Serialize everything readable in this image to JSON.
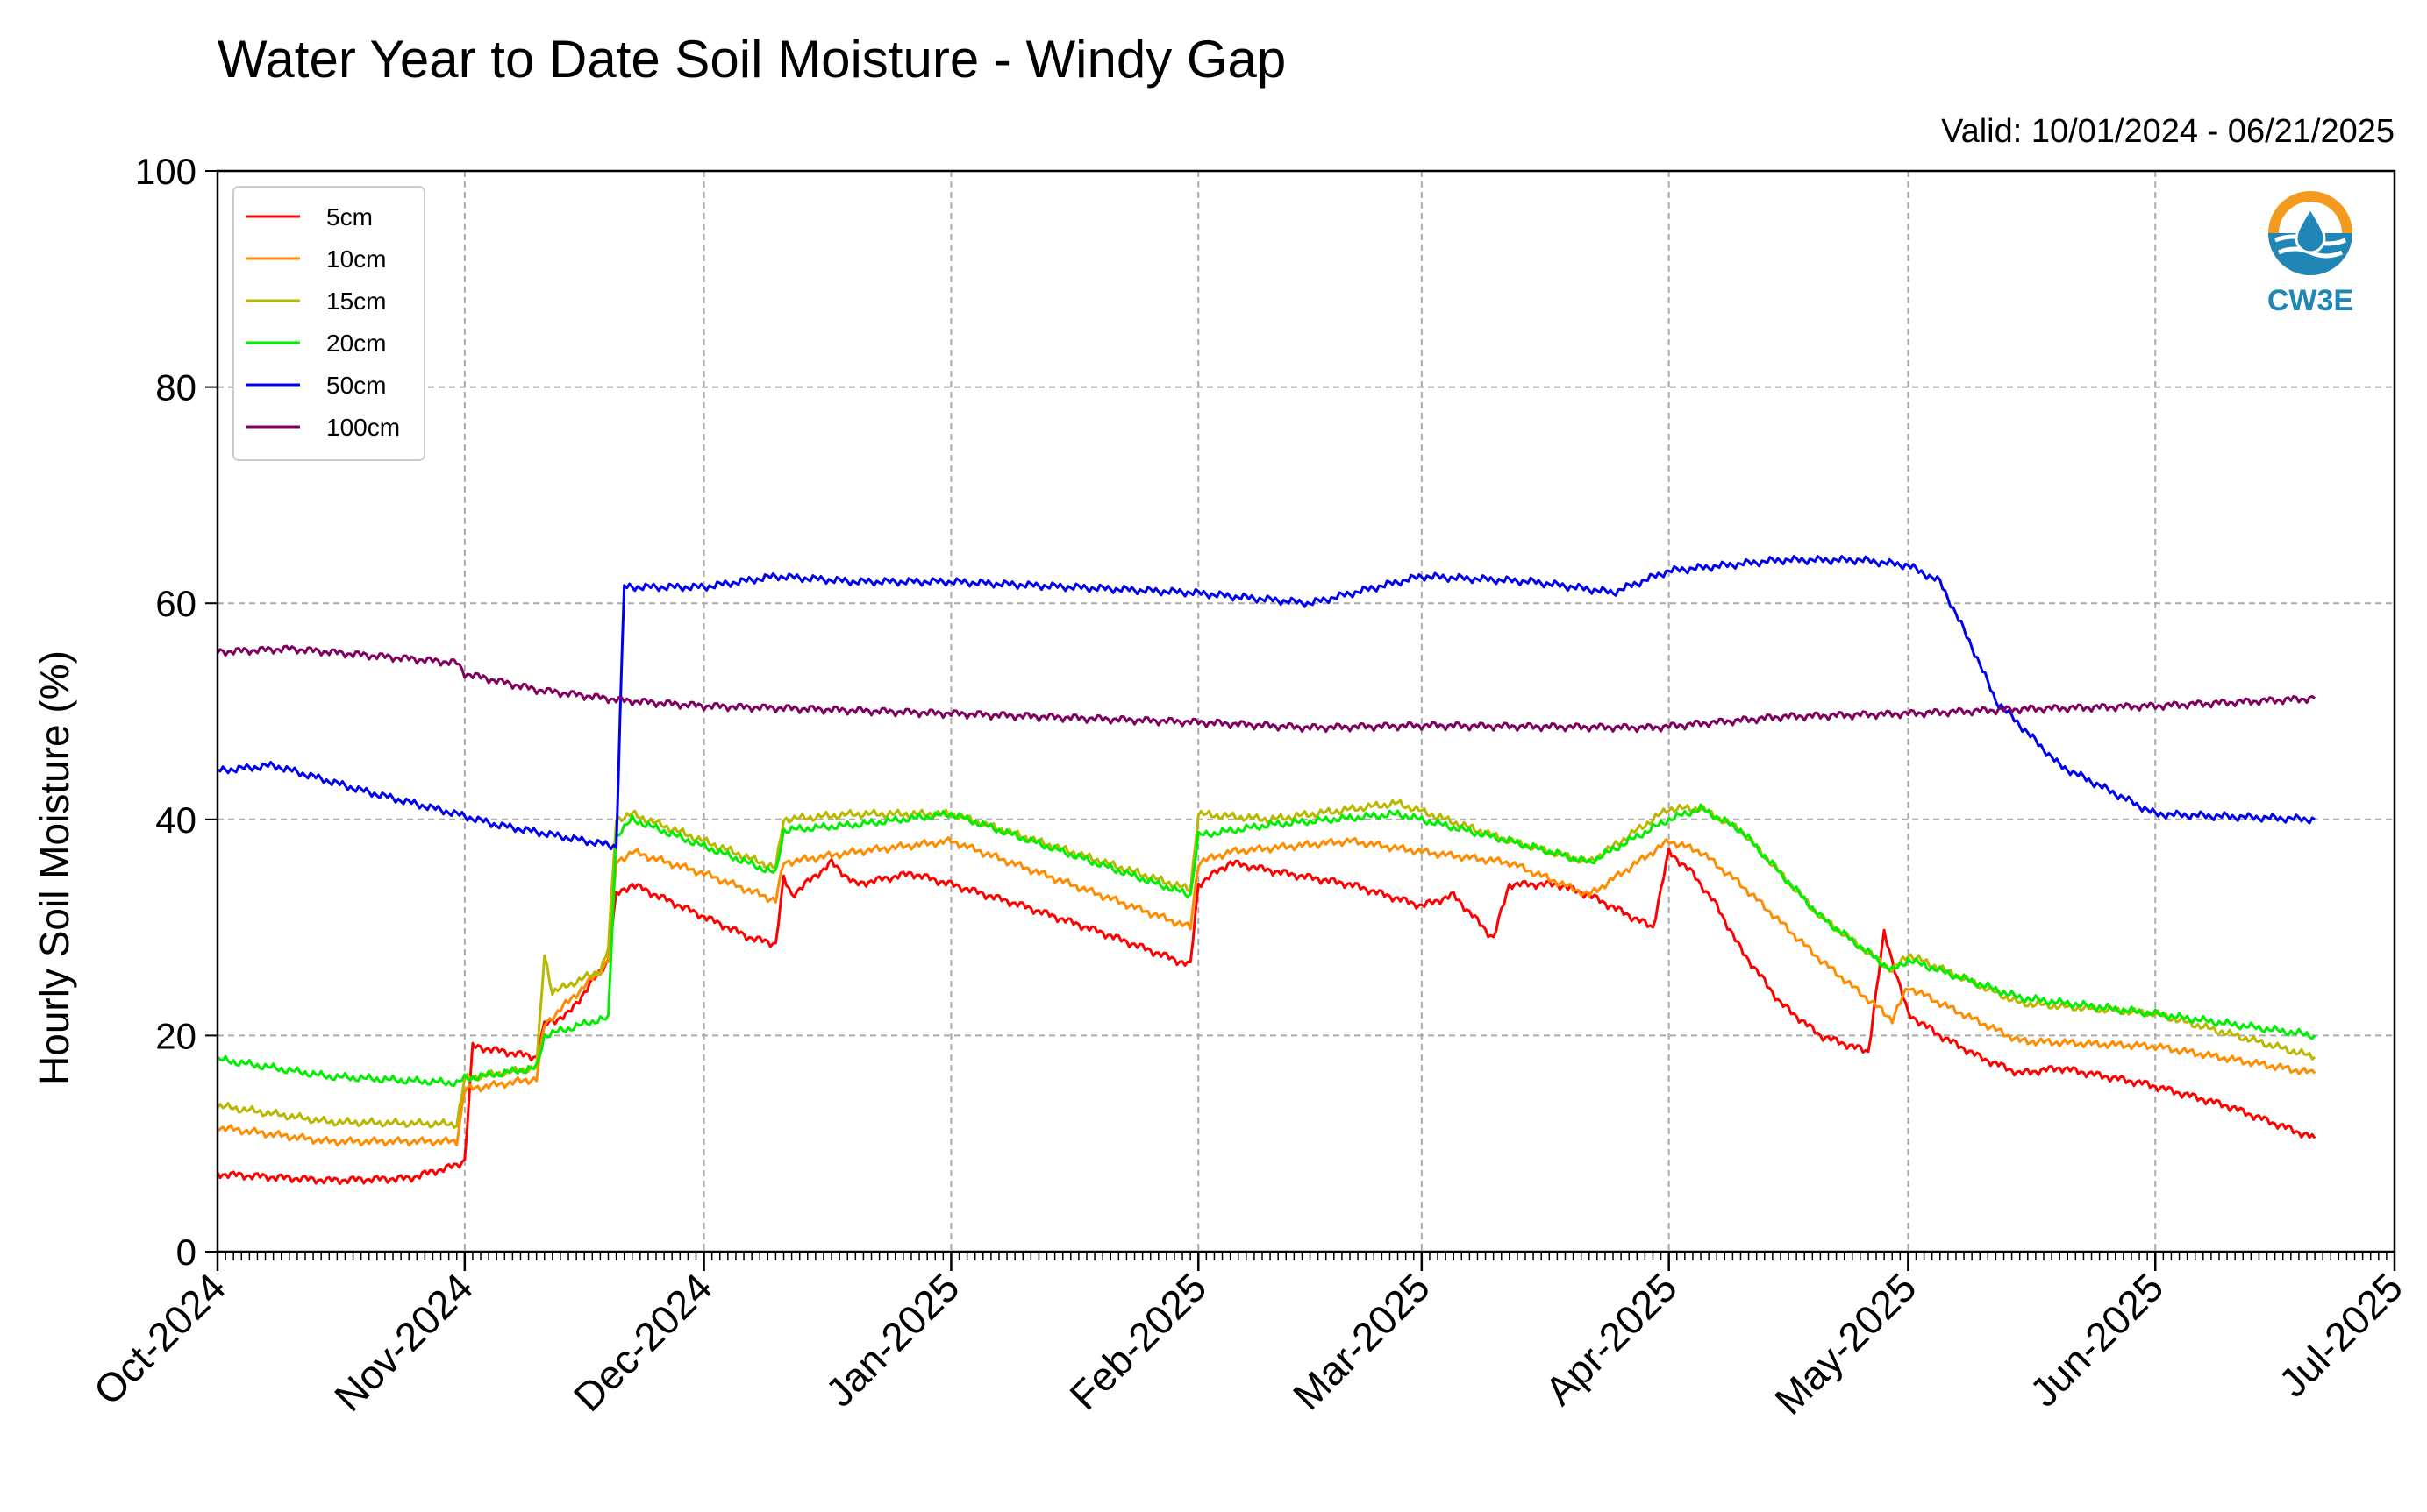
{
  "chart_data": {
    "type": "line",
    "title": "Water Year to Date Soil Moisture - Windy Gap",
    "subtitle": "Valid: 10/01/2024 - 06/21/2025",
    "ylabel": "Hourly Soil Moisture (%)",
    "xlabel": "",
    "ylim": [
      0,
      100
    ],
    "xlim": [
      "2024-10-01",
      "2025-07-01"
    ],
    "yticks": [
      "0",
      "20",
      "40",
      "60",
      "80",
      "100"
    ],
    "xticks": [
      {
        "date": "2024-10-01",
        "label": "Oct-2024"
      },
      {
        "date": "2024-11-01",
        "label": "Nov-2024"
      },
      {
        "date": "2024-12-01",
        "label": "Dec-2024"
      },
      {
        "date": "2025-01-01",
        "label": "Jan-2025"
      },
      {
        "date": "2025-02-01",
        "label": "Feb-2025"
      },
      {
        "date": "2025-03-01",
        "label": "Mar-2025"
      },
      {
        "date": "2025-04-01",
        "label": "Apr-2025"
      },
      {
        "date": "2025-05-01",
        "label": "May-2025"
      },
      {
        "date": "2025-06-01",
        "label": "Jun-2025"
      },
      {
        "date": "2025-07-01",
        "label": "Jul-2025"
      }
    ],
    "grid": true,
    "legend_position": "top-left",
    "series": [
      {
        "name": "5cm",
        "color": "#ff0000",
        "x": [
          "2024-10-01",
          "2024-10-15",
          "2024-10-25",
          "2024-10-31",
          "2024-11-01",
          "2024-11-02",
          "2024-11-10",
          "2024-11-11",
          "2024-11-14",
          "2024-11-18",
          "2024-11-19",
          "2024-11-20",
          "2024-11-22",
          "2024-12-01",
          "2024-12-07",
          "2024-12-10",
          "2024-12-11",
          "2024-12-12",
          "2024-12-17",
          "2024-12-20",
          "2024-12-27",
          "2025-01-01",
          "2025-01-10",
          "2025-01-20",
          "2025-01-31",
          "2025-02-01",
          "2025-02-05",
          "2025-02-12",
          "2025-02-20",
          "2025-03-01",
          "2025-03-05",
          "2025-03-10",
          "2025-03-12",
          "2025-03-18",
          "2025-03-22",
          "2025-03-30",
          "2025-04-01",
          "2025-04-04",
          "2025-04-07",
          "2025-04-10",
          "2025-04-15",
          "2025-04-20",
          "2025-04-26",
          "2025-04-28",
          "2025-05-01",
          "2025-05-05",
          "2025-05-10",
          "2025-05-15",
          "2025-05-20",
          "2025-05-31",
          "2025-06-10",
          "2025-06-21"
        ],
        "values": [
          7.2,
          6.6,
          6.8,
          8.0,
          8.5,
          19.0,
          18.0,
          21.0,
          22.0,
          26.0,
          27.0,
          33.0,
          34.0,
          31.0,
          29.0,
          28.5,
          34.5,
          33.0,
          36.0,
          34.0,
          35.0,
          34.0,
          32.0,
          29.5,
          26.5,
          34.0,
          36.0,
          35.0,
          34.0,
          32.0,
          33.0,
          29.0,
          34.0,
          34.0,
          33.0,
          30.0,
          37.0,
          35.0,
          32.0,
          28.0,
          23.0,
          20.0,
          18.5,
          29.5,
          22.0,
          20.0,
          18.0,
          16.5,
          17.0,
          15.5,
          13.5,
          10.5
        ]
      },
      {
        "name": "10cm",
        "color": "#ff8c00",
        "x": [
          "2024-10-01",
          "2024-10-15",
          "2024-10-31",
          "2024-11-01",
          "2024-11-10",
          "2024-11-11",
          "2024-11-18",
          "2024-11-19",
          "2024-11-20",
          "2024-11-22",
          "2024-12-01",
          "2024-12-10",
          "2024-12-11",
          "2024-12-20",
          "2025-01-01",
          "2025-01-31",
          "2025-02-01",
          "2025-02-05",
          "2025-02-20",
          "2025-03-01",
          "2025-03-12",
          "2025-03-22",
          "2025-04-01",
          "2025-04-05",
          "2025-04-10",
          "2025-04-20",
          "2025-04-29",
          "2025-05-01",
          "2025-05-05",
          "2025-05-15",
          "2025-06-01",
          "2025-06-21"
        ],
        "values": [
          11.5,
          10.2,
          10.2,
          15.0,
          16.0,
          21.0,
          26.0,
          27.0,
          36.0,
          37.0,
          35.0,
          32.5,
          36.0,
          37.0,
          38.0,
          30.0,
          36.0,
          37.0,
          38.0,
          37.0,
          36.0,
          33.0,
          38.0,
          37.0,
          34.0,
          27.0,
          21.5,
          24.5,
          23.0,
          19.5,
          19.0,
          16.5
        ]
      },
      {
        "name": "15cm",
        "color": "#b8b800",
        "x": [
          "2024-10-01",
          "2024-10-15",
          "2024-10-31",
          "2024-11-01",
          "2024-11-10",
          "2024-11-11",
          "2024-11-12",
          "2024-11-18",
          "2024-11-19",
          "2024-11-20",
          "2024-11-22",
          "2024-12-01",
          "2024-12-10",
          "2024-12-11",
          "2024-12-20",
          "2025-01-01",
          "2025-01-31",
          "2025-02-01",
          "2025-02-10",
          "2025-02-26",
          "2025-03-12",
          "2025-03-22",
          "2025-04-01",
          "2025-04-05",
          "2025-04-10",
          "2025-04-20",
          "2025-04-29",
          "2025-05-01",
          "2025-05-15",
          "2025-06-01",
          "2025-06-21"
        ],
        "values": [
          13.5,
          12.0,
          11.8,
          16.0,
          17.0,
          27.5,
          24.0,
          26.0,
          28.0,
          40.0,
          40.5,
          38.0,
          35.5,
          40.0,
          40.5,
          40.5,
          33.5,
          40.5,
          40.0,
          41.5,
          38.0,
          36.0,
          41.0,
          41.0,
          39.0,
          31.0,
          26.0,
          27.5,
          23.0,
          22.0,
          18.0
        ]
      },
      {
        "name": "20cm",
        "color": "#00ee00",
        "x": [
          "2024-10-01",
          "2024-10-15",
          "2024-10-31",
          "2024-11-01",
          "2024-11-10",
          "2024-11-11",
          "2024-11-18",
          "2024-11-19",
          "2024-11-20",
          "2024-11-22",
          "2024-12-01",
          "2024-12-10",
          "2024-12-11",
          "2024-12-20",
          "2025-01-01",
          "2025-01-31",
          "2025-02-01",
          "2025-02-10",
          "2025-02-26",
          "2025-03-12",
          "2025-03-22",
          "2025-04-01",
          "2025-04-05",
          "2025-04-10",
          "2025-04-20",
          "2025-04-29",
          "2025-05-01",
          "2025-05-15",
          "2025-06-01",
          "2025-06-21"
        ],
        "values": [
          17.8,
          16.2,
          15.6,
          16.0,
          17.0,
          20.0,
          21.5,
          21.5,
          38.5,
          40.0,
          37.5,
          35.0,
          39.0,
          39.5,
          40.5,
          33.0,
          38.5,
          39.5,
          40.5,
          38.0,
          36.0,
          40.0,
          41.0,
          39.0,
          31.0,
          26.0,
          27.0,
          23.5,
          22.0,
          20.0
        ]
      },
      {
        "name": "50cm",
        "color": "#0000ee",
        "x": [
          "2024-10-01",
          "2024-10-08",
          "2024-10-20",
          "2024-10-31",
          "2024-11-05",
          "2024-11-20",
          "2024-11-20.5",
          "2024-11-21",
          "2024-12-01",
          "2024-12-10",
          "2024-12-20",
          "2025-01-01",
          "2025-01-31",
          "2025-02-15",
          "2025-03-01",
          "2025-03-15",
          "2025-03-25",
          "2025-04-01",
          "2025-04-15",
          "2025-04-25",
          "2025-05-01",
          "2025-05-05",
          "2025-05-09",
          "2025-05-12",
          "2025-05-20",
          "2025-06-01",
          "2025-06-21"
        ],
        "values": [
          44.5,
          45.0,
          42.5,
          40.5,
          39.5,
          37.5,
          50.0,
          61.5,
          61.5,
          62.5,
          62.0,
          62.0,
          61.0,
          60.0,
          62.5,
          62.0,
          61.0,
          63.0,
          64.0,
          64.0,
          63.5,
          62.0,
          56.0,
          51.0,
          45.0,
          40.5,
          40.0
        ]
      },
      {
        "name": "100cm",
        "color": "#800060",
        "x": [
          "2024-10-01",
          "2024-10-10",
          "2024-10-31",
          "2024-11-01",
          "2024-11-10",
          "2024-11-21",
          "2024-12-01",
          "2024-12-15",
          "2025-01-01",
          "2025-02-01",
          "2025-02-15",
          "2025-03-01",
          "2025-03-30",
          "2025-04-15",
          "2025-05-01",
          "2025-05-15",
          "2025-06-01",
          "2025-06-21"
        ],
        "values": [
          55.5,
          55.8,
          54.5,
          53.5,
          52.0,
          51.0,
          50.5,
          50.2,
          49.8,
          49.0,
          48.5,
          48.7,
          48.5,
          49.5,
          49.8,
          50.2,
          50.5,
          51.2
        ]
      }
    ]
  }
}
